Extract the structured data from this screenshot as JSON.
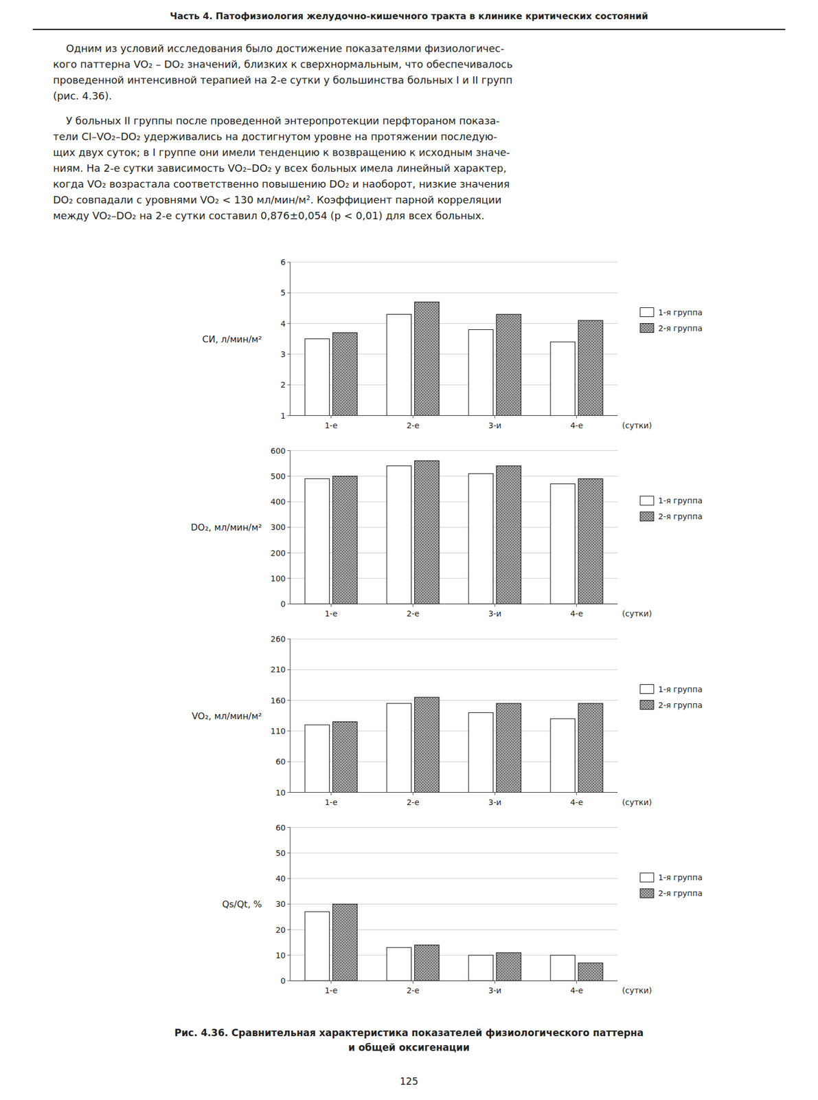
{
  "header": "Часть 4. Патофизиология желудочно-кишечного тракта в клинике критических состояний",
  "paragraphs": [
    [
      "    Одним из условий исследования было достижение показателями физиологичес-",
      "кого паттерна VO₂ – DO₂ значений, близких к сверхнормальным, что обеспечивалось",
      "проведенной интенсивной терапией на 2-е сутки у большинства больных I и II групп",
      "(рис. 4.36)."
    ],
    [
      "    У больных II группы после проведенной энтеропротекции перфтораном показа-",
      "тели CI–VO₂–DO₂ удерживались на достигнутом уровне на протяжении последую-",
      "щих двух суток; в I группе они имели тенденцию к возвращению к исходным значе-",
      "ниям. На 2-е сутки зависимость VO₂–DO₂ у всех больных имела линейный характер,",
      "когда VO₂ возрастала соответственно повышению DO₂ и наоборот, низкие значения",
      "DO₂ совпадали с уровнями VO₂ < 130 мл/мин/м². Коэффициент парной корреляции",
      "между VO₂–DO₂ на 2-е сутки составил 0,876±0,054 (р < 0,01) для всех больных."
    ]
  ],
  "caption": [
    "Рис. 4.36. Сравнительная характеристика показателей физиологического паттерна",
    "и общей оксигенации"
  ],
  "page_number": "125",
  "chart_data": [
    {
      "type": "bar",
      "ylabel": "СИ, л/мин/м²",
      "xlabel": "(сутки)",
      "categories": [
        "1-е",
        "2-е",
        "3-и",
        "4-е"
      ],
      "series": [
        {
          "name": "1-я группа",
          "color": "#ffffff",
          "values": [
            3.5,
            4.3,
            3.8,
            3.4
          ]
        },
        {
          "name": "2-я группа",
          "color": "#aaaaaa",
          "values": [
            3.7,
            4.7,
            4.3,
            4.1
          ]
        }
      ],
      "ylim": [
        1,
        6
      ],
      "yticks": [
        1,
        2,
        3,
        4,
        5,
        6
      ],
      "grid": true,
      "legend": "right"
    },
    {
      "type": "bar",
      "ylabel": "DO₂, мл/мин/м²",
      "xlabel": "(сутки)",
      "categories": [
        "1-е",
        "2-е",
        "3-и",
        "4-е"
      ],
      "series": [
        {
          "name": "1-я группа",
          "color": "#ffffff",
          "values": [
            490,
            540,
            510,
            470
          ]
        },
        {
          "name": "2-я группа",
          "color": "#aaaaaa",
          "values": [
            500,
            560,
            540,
            490
          ]
        }
      ],
      "ylim": [
        0,
        600
      ],
      "yticks": [
        0,
        100,
        200,
        300,
        400,
        500,
        600
      ],
      "grid": true,
      "legend": "right"
    },
    {
      "type": "bar",
      "ylabel": "VO₂, мл/мин/м²",
      "xlabel": "(сутки)",
      "categories": [
        "1-е",
        "2-е",
        "3-и",
        "4-е"
      ],
      "series": [
        {
          "name": "1-я группа",
          "color": "#ffffff",
          "values": [
            120,
            155,
            140,
            130
          ]
        },
        {
          "name": "2-я группа",
          "color": "#aaaaaa",
          "values": [
            125,
            165,
            155,
            155
          ]
        }
      ],
      "ylim": [
        10,
        260
      ],
      "yticks": [
        10,
        60,
        110,
        160,
        210,
        260
      ],
      "grid": true,
      "legend": "right"
    },
    {
      "type": "bar",
      "ylabel": "Qs/Qt, %",
      "xlabel": "(сутки)",
      "categories": [
        "1-е",
        "2-е",
        "3-и",
        "4-е"
      ],
      "series": [
        {
          "name": "1-я группа",
          "color": "#ffffff",
          "values": [
            27,
            13,
            10,
            10
          ]
        },
        {
          "name": "2-я группа",
          "color": "#aaaaaa",
          "values": [
            30,
            14,
            11,
            7
          ]
        }
      ],
      "ylim": [
        0,
        60
      ],
      "yticks": [
        0,
        10,
        20,
        30,
        40,
        50,
        60
      ],
      "grid": true,
      "legend": "right"
    }
  ]
}
